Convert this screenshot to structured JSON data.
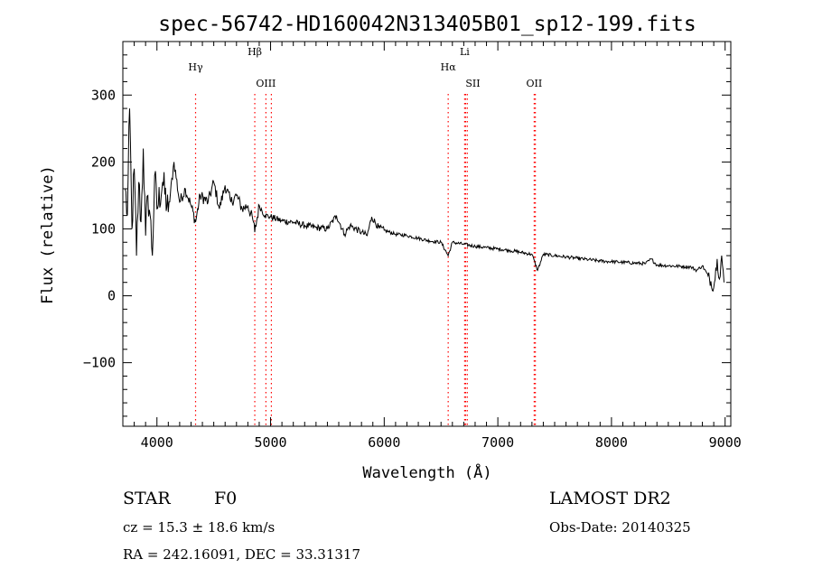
{
  "chart_data": {
    "type": "line",
    "title": "spec-56742-HD160042N313405B01_sp12-199.fits",
    "xlabel": "Wavelength (Å)",
    "ylabel": "Flux (relative)",
    "xlim": [
      3700,
      9050
    ],
    "ylim": [
      -195,
      380
    ],
    "xticks": [
      4000,
      5000,
      6000,
      7000,
      8000,
      9000
    ],
    "yticks": [
      -100,
      0,
      100,
      200,
      300
    ],
    "grid": false,
    "line_color": "#000000",
    "marker_color": "#ff0000",
    "series": [
      {
        "x": [
          3720,
          3740,
          3760,
          3780,
          3800,
          3820,
          3840,
          3860,
          3880,
          3900,
          3920,
          3940,
          3960,
          3980,
          4000,
          4050,
          4100,
          4150,
          4200,
          4250,
          4300,
          4340,
          4380,
          4450,
          4500,
          4550,
          4600,
          4650,
          4700,
          4750,
          4800,
          4850,
          4861,
          4900,
          4950,
          5000,
          5100,
          5200,
          5300,
          5400,
          5500,
          5580,
          5650,
          5700,
          5800,
          5850,
          5890,
          5950,
          6000,
          6100,
          6200,
          6300,
          6400,
          6500,
          6563,
          6600,
          6700,
          6800,
          6900,
          7000,
          7100,
          7200,
          7300,
          7350,
          7400,
          7500,
          7600,
          7700,
          7800,
          7900,
          8000,
          8100,
          8200,
          8300,
          8350,
          8400,
          8500,
          8600,
          8700,
          8750,
          8800,
          8850,
          8900,
          8930,
          8950,
          8970,
          8990
        ],
        "y": [
          160,
          120,
          280,
          100,
          190,
          60,
          170,
          110,
          220,
          90,
          150,
          120,
          60,
          180,
          130,
          170,
          125,
          200,
          140,
          160,
          135,
          110,
          150,
          140,
          170,
          130,
          165,
          140,
          150,
          130,
          135,
          110,
          95,
          135,
          120,
          118,
          112,
          110,
          105,
          102,
          100,
          120,
          92,
          105,
          95,
          90,
          118,
          102,
          98,
          92,
          90,
          86,
          82,
          80,
          60,
          80,
          77,
          74,
          72,
          70,
          68,
          65,
          62,
          38,
          62,
          60,
          58,
          56,
          54,
          52,
          51,
          50,
          49,
          48,
          55,
          46,
          45,
          44,
          43,
          38,
          45,
          30,
          12,
          55,
          25,
          60,
          20
        ]
      }
    ],
    "lines": [
      {
        "label": "Hγ",
        "x": 4340
      },
      {
        "label": "Hβ",
        "x": 4861
      },
      {
        "label": "OIII",
        "x": 4959
      },
      {
        "label": "OIII",
        "x": 5007
      },
      {
        "label": "Hα",
        "x": 6563
      },
      {
        "label": "Li",
        "x": 6708
      },
      {
        "label": "SII",
        "x": 6716
      },
      {
        "label": "SII",
        "x": 6731
      },
      {
        "label": "OII",
        "x": 7320
      },
      {
        "label": "OII",
        "x": 7330
      }
    ]
  },
  "info": {
    "object_type": "STAR",
    "subclass": "F0",
    "survey": "LAMOST DR2",
    "cz": "cz = 15.3 ± 18.6 km/s",
    "obs_date": "Obs-Date: 20140325",
    "coords": "RA = 242.16091, DEC =  33.31317"
  }
}
